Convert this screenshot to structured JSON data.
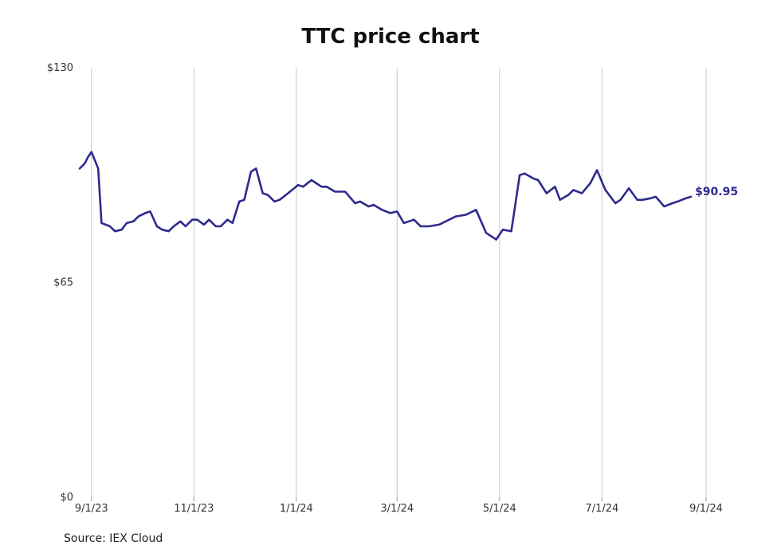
{
  "chart_data": {
    "type": "line",
    "title": "TTC price chart",
    "source": "Source: IEX Cloud",
    "ylim": [
      0,
      130
    ],
    "yticks": [
      "$0",
      "$65",
      "$130"
    ],
    "xticks": [
      "9/1/23",
      "11/1/23",
      "1/1/24",
      "3/1/24",
      "5/1/24",
      "7/1/24",
      "9/1/24"
    ],
    "xlim": [
      "2023-08-25",
      "2024-09-10"
    ],
    "vertical_grid": true,
    "line_color": "#2e2a8c",
    "end_label": "$90.95",
    "series": [
      {
        "x": [
          "2023-08-25",
          "2023-08-28",
          "2023-08-30",
          "2023-09-01",
          "2023-09-05",
          "2023-09-07",
          "2023-09-12",
          "2023-09-15",
          "2023-09-19",
          "2023-09-22",
          "2023-09-26",
          "2023-09-29",
          "2023-10-03",
          "2023-10-06",
          "2023-10-10",
          "2023-10-13",
          "2023-10-17",
          "2023-10-20",
          "2023-10-24",
          "2023-10-27",
          "2023-10-31",
          "2023-11-03",
          "2023-11-07",
          "2023-11-10",
          "2023-11-14",
          "2023-11-17",
          "2023-11-21",
          "2023-11-24",
          "2023-11-28",
          "2023-12-01",
          "2023-12-05",
          "2023-12-08",
          "2023-12-12",
          "2023-12-15",
          "2023-12-19",
          "2023-12-22",
          "2023-12-27",
          "2024-01-02",
          "2024-01-05",
          "2024-01-10",
          "2024-01-16",
          "2024-01-19",
          "2024-01-24",
          "2024-01-30",
          "2024-02-05",
          "2024-02-08",
          "2024-02-13",
          "2024-02-16",
          "2024-02-21",
          "2024-02-26",
          "2024-03-01",
          "2024-03-05",
          "2024-03-11",
          "2024-03-15",
          "2024-03-20",
          "2024-03-26",
          "2024-04-01",
          "2024-04-05",
          "2024-04-11",
          "2024-04-17",
          "2024-04-23",
          "2024-04-29",
          "2024-05-03",
          "2024-05-08",
          "2024-05-13",
          "2024-05-16",
          "2024-05-21",
          "2024-05-24",
          "2024-05-29",
          "2024-06-03",
          "2024-06-06",
          "2024-06-11",
          "2024-06-14",
          "2024-06-19",
          "2024-06-24",
          "2024-06-28",
          "2024-07-03",
          "2024-07-09",
          "2024-07-12",
          "2024-07-17",
          "2024-07-22",
          "2024-07-25",
          "2024-07-30",
          "2024-08-02",
          "2024-08-07",
          "2024-08-12",
          "2024-08-15",
          "2024-08-20",
          "2024-08-23"
        ],
        "y": [
          99.5,
          101,
          103,
          104.5,
          99.5,
          83,
          82,
          80.5,
          81,
          83,
          83.5,
          85,
          86,
          86.5,
          82,
          81,
          80.5,
          82,
          83.5,
          82,
          84,
          84,
          82.5,
          84,
          82,
          82,
          84,
          83,
          89.5,
          90,
          98.5,
          99.5,
          92,
          91.5,
          89.5,
          90,
          92,
          94.5,
          94,
          96,
          94,
          94,
          92.5,
          92.5,
          89,
          89.5,
          88,
          88.5,
          87,
          86,
          86.5,
          83,
          84,
          82,
          82,
          82.5,
          84,
          85,
          85.5,
          87,
          80,
          78,
          81,
          80.5,
          97.5,
          98,
          96.5,
          96,
          92,
          94,
          90,
          91.5,
          93,
          92,
          95,
          99,
          93,
          89,
          90,
          93.5,
          90,
          90,
          90.5,
          90.95,
          88,
          89,
          89.5,
          90.5,
          90.95
        ]
      }
    ]
  }
}
